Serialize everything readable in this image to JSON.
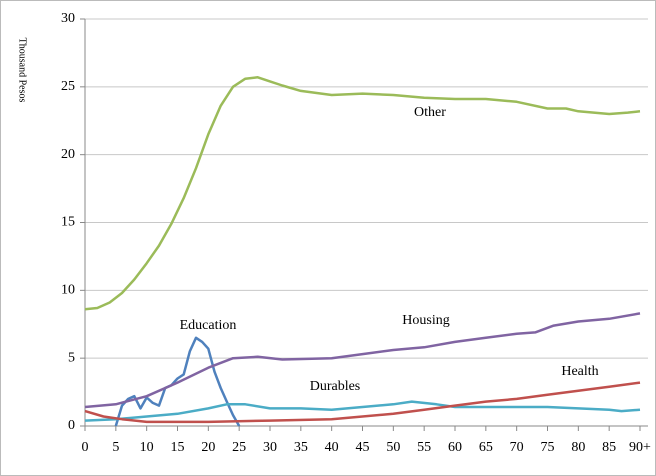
{
  "chart_data": {
    "type": "line",
    "y_label": "Thousand Pesos",
    "xlim": [
      0,
      90
    ],
    "ylim": [
      0,
      30
    ],
    "xticks": [
      0,
      5,
      10,
      15,
      20,
      25,
      30,
      35,
      40,
      45,
      50,
      55,
      60,
      65,
      70,
      75,
      80,
      85,
      {
        "value": 90,
        "label": "90+"
      }
    ],
    "yticks": [
      0,
      5,
      10,
      15,
      20,
      25,
      30
    ],
    "grid": true,
    "series": [
      {
        "name": "Other",
        "color": "#9bbb59",
        "x": [
          0,
          2,
          4,
          6,
          8,
          10,
          12,
          14,
          16,
          18,
          20,
          22,
          24,
          26,
          28,
          30,
          32,
          35,
          40,
          45,
          50,
          55,
          60,
          65,
          70,
          75,
          78,
          80,
          85,
          88,
          90
        ],
        "values": [
          8.6,
          8.7,
          9.1,
          9.8,
          10.8,
          12.0,
          13.3,
          14.9,
          16.8,
          19.0,
          21.5,
          23.6,
          25.0,
          25.6,
          25.7,
          25.4,
          25.1,
          24.7,
          24.4,
          24.5,
          24.4,
          24.2,
          24.1,
          24.1,
          23.9,
          23.4,
          23.4,
          23.2,
          23.0,
          23.1,
          23.2
        ]
      },
      {
        "name": "Education",
        "color": "#4f81bd",
        "x": [
          5,
          6,
          7,
          8,
          9,
          10,
          11,
          12,
          13,
          14,
          15,
          16,
          17,
          18,
          19,
          20,
          21,
          22,
          23,
          24,
          25
        ],
        "values": [
          0,
          1.5,
          2.0,
          2.2,
          1.3,
          2.1,
          1.7,
          1.5,
          2.8,
          3.0,
          3.5,
          3.8,
          5.5,
          6.5,
          6.2,
          5.7,
          4.0,
          2.8,
          1.8,
          0.8,
          0
        ]
      },
      {
        "name": "Housing",
        "color": "#8064a2",
        "x": [
          0,
          5,
          10,
          15,
          20,
          24,
          28,
          32,
          40,
          45,
          50,
          55,
          60,
          65,
          70,
          73,
          76,
          80,
          85,
          90
        ],
        "values": [
          1.4,
          1.6,
          2.2,
          3.2,
          4.3,
          5.0,
          5.1,
          4.9,
          5.0,
          5.3,
          5.6,
          5.8,
          6.2,
          6.5,
          6.8,
          6.9,
          7.4,
          7.7,
          7.9,
          8.3
        ]
      },
      {
        "name": "Durables",
        "color": "#4bacc6",
        "x": [
          0,
          5,
          10,
          15,
          20,
          23,
          26,
          30,
          35,
          40,
          45,
          50,
          53,
          57,
          60,
          65,
          75,
          80,
          85,
          87,
          90
        ],
        "values": [
          0.4,
          0.5,
          0.7,
          0.9,
          1.3,
          1.6,
          1.6,
          1.3,
          1.3,
          1.2,
          1.4,
          1.6,
          1.8,
          1.6,
          1.4,
          1.4,
          1.4,
          1.3,
          1.2,
          1.1,
          1.2
        ]
      },
      {
        "name": "Health",
        "color": "#c0504d",
        "x": [
          0,
          3,
          6,
          10,
          15,
          20,
          30,
          40,
          50,
          55,
          60,
          65,
          70,
          75,
          80,
          85,
          90
        ],
        "values": [
          1.1,
          0.7,
          0.5,
          0.3,
          0.3,
          0.3,
          0.4,
          0.5,
          0.9,
          1.2,
          1.5,
          1.8,
          2.0,
          2.3,
          2.6,
          2.9,
          3.2
        ]
      }
    ]
  }
}
